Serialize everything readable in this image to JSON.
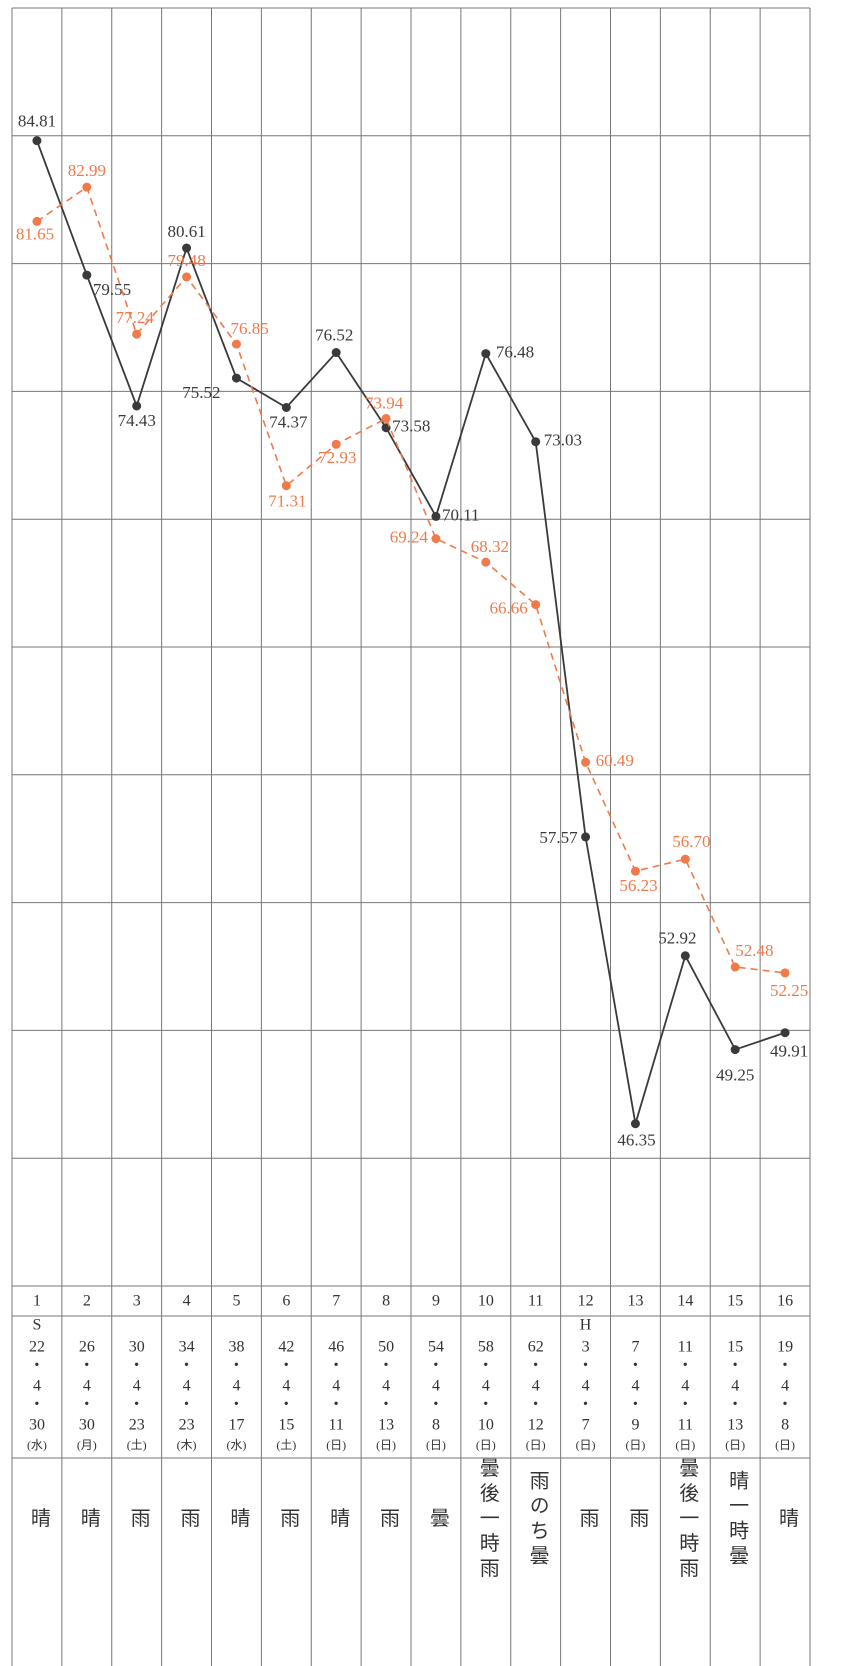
{
  "chart_data": {
    "type": "line",
    "categories": [
      "1",
      "2",
      "3",
      "4",
      "5",
      "6",
      "7",
      "8",
      "9",
      "10",
      "11",
      "12",
      "13",
      "14",
      "15",
      "16"
    ],
    "series": [
      {
        "color": "#3a3a3a",
        "dash": false,
        "values": [
          84.81,
          79.55,
          74.43,
          80.61,
          75.52,
          74.37,
          76.52,
          73.58,
          70.11,
          76.48,
          73.03,
          57.57,
          46.35,
          52.92,
          49.25,
          49.91
        ]
      },
      {
        "color": "#f07a4a",
        "dash": true,
        "values": [
          81.65,
          82.99,
          77.24,
          79.48,
          76.85,
          71.31,
          72.93,
          73.94,
          69.24,
          68.32,
          66.66,
          60.49,
          56.23,
          56.7,
          52.48,
          52.25
        ],
        "value_labels": [
          "81.65",
          "82.99",
          "77.24",
          "79.48",
          "76.85",
          "71.31",
          "72.93",
          "73.94",
          "69.24",
          "68.32",
          "66.66",
          "60.49",
          "56.23",
          "56.70",
          "52.48",
          "52.25"
        ]
      }
    ],
    "ylim": [
      40,
      90
    ],
    "yticks": [
      40,
      45,
      50,
      55,
      60,
      65,
      70,
      75,
      80,
      85,
      90
    ],
    "grid": true
  },
  "table": {
    "dates": [
      [
        "S",
        "22",
        "・",
        "4",
        "・",
        "30",
        "(水)"
      ],
      [
        "26",
        "・",
        "4",
        "・",
        "30",
        "(月)"
      ],
      [
        "30",
        "・",
        "4",
        "・",
        "23",
        "(土)"
      ],
      [
        "34",
        "・",
        "4",
        "・",
        "23",
        "(木)"
      ],
      [
        "38",
        "・",
        "4",
        "・",
        "17",
        "(水)"
      ],
      [
        "42",
        "・",
        "4",
        "・",
        "15",
        "(土)"
      ],
      [
        "46",
        "・",
        "4",
        "・",
        "11",
        "(日)"
      ],
      [
        "50",
        "・",
        "4",
        "・",
        "13",
        "(日)"
      ],
      [
        "54",
        "・",
        "4",
        "・",
        "8",
        "(日)"
      ],
      [
        "58",
        "・",
        "4",
        "・",
        "10",
        "(日)"
      ],
      [
        "62",
        "・",
        "4",
        "・",
        "12",
        "(日)"
      ],
      [
        "H",
        "3",
        "・",
        "4",
        "・",
        "7",
        "(日)"
      ],
      [
        "7",
        "・",
        "4",
        "・",
        "9",
        "(日)"
      ],
      [
        "11",
        "・",
        "4",
        "・",
        "11",
        "(日)"
      ],
      [
        "15",
        "・",
        "4",
        "・",
        "13",
        "(日)"
      ],
      [
        "19",
        "・",
        "4",
        "・",
        "8",
        "(日)"
      ]
    ],
    "weather": [
      "晴",
      "晴",
      "雨",
      "雨",
      "晴",
      "雨",
      "晴",
      "雨",
      "曇",
      "曇後一時雨",
      "雨のち曇",
      "雨",
      "雨",
      "曇後一時雨",
      "晴一時曇",
      "晴"
    ]
  }
}
